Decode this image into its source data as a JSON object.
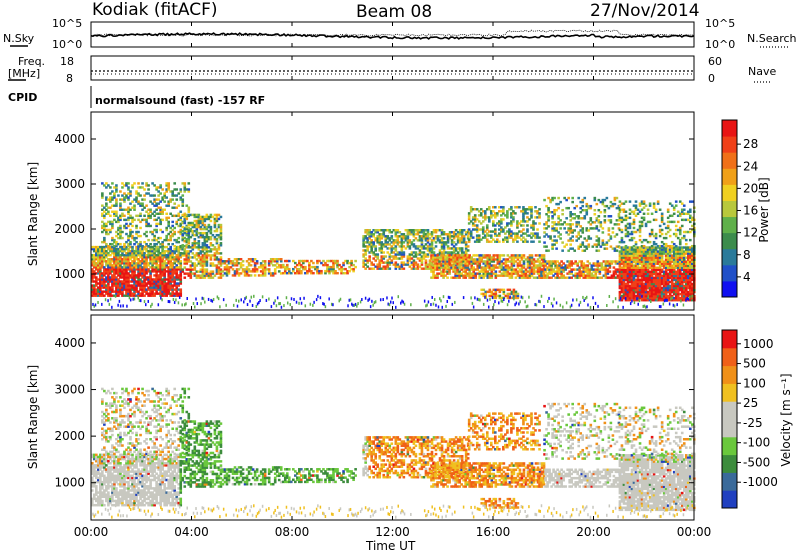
{
  "header": {
    "station": "Kodiak (fitACF)",
    "beam": "Beam 08",
    "date": "27/Nov/2014"
  },
  "noise_panel": {
    "left_label": "N.Sky",
    "right_label": "N.Search",
    "ticks_top": "10^5",
    "ticks_bottom": "10^0"
  },
  "freq_panel": {
    "left_label_line1": "Freq.",
    "left_label_line2": "[MHz]",
    "left_ticks": [
      "18",
      "8"
    ],
    "right_label": "Nave",
    "right_ticks": [
      "60",
      "0"
    ]
  },
  "cpid": {
    "label": "CPID",
    "value": "normalsound (fast) -157 RF"
  },
  "xaxis": {
    "label": "Time UT",
    "ticks": [
      "00:00",
      "04:00",
      "08:00",
      "12:00",
      "16:00",
      "20:00",
      "00:00"
    ]
  },
  "chart_data": [
    {
      "type": "heatmap",
      "panel": "power",
      "ylabel": "Slant Range [km]",
      "yticks": [
        "1000",
        "2000",
        "3000",
        "4000"
      ],
      "ylim": [
        200,
        4600
      ],
      "xlim_hours": [
        0,
        24
      ],
      "colorbar": {
        "label": "Power [dB]",
        "ticks": [
          "4",
          "8",
          "12",
          "16",
          "20",
          "24",
          "28"
        ],
        "colors": [
          "#1010f0",
          "#2050c8",
          "#2a7a9a",
          "#3c8c4c",
          "#5fb04a",
          "#b8c83c",
          "#f0d020",
          "#f0a018",
          "#f07018",
          "#f04018",
          "#e81414"
        ]
      }
    },
    {
      "type": "heatmap",
      "panel": "velocity",
      "ylabel": "Slant Range [km]",
      "yticks": [
        "1000",
        "2000",
        "3000",
        "4000"
      ],
      "ylim": [
        200,
        4600
      ],
      "xlim_hours": [
        0,
        24
      ],
      "colorbar": {
        "label": "Velocity [m s⁻¹]",
        "ticks": [
          "1000",
          "500",
          "100",
          "25",
          "-25",
          "-100",
          "-500",
          "-1000"
        ],
        "colors": [
          "#2040c0",
          "#3a6a9a",
          "#3c8c3c",
          "#6ac83c",
          "#c8c8c0",
          "#c8c8c0",
          "#f0c020",
          "#f09018",
          "#f06018",
          "#e81414"
        ]
      }
    }
  ]
}
